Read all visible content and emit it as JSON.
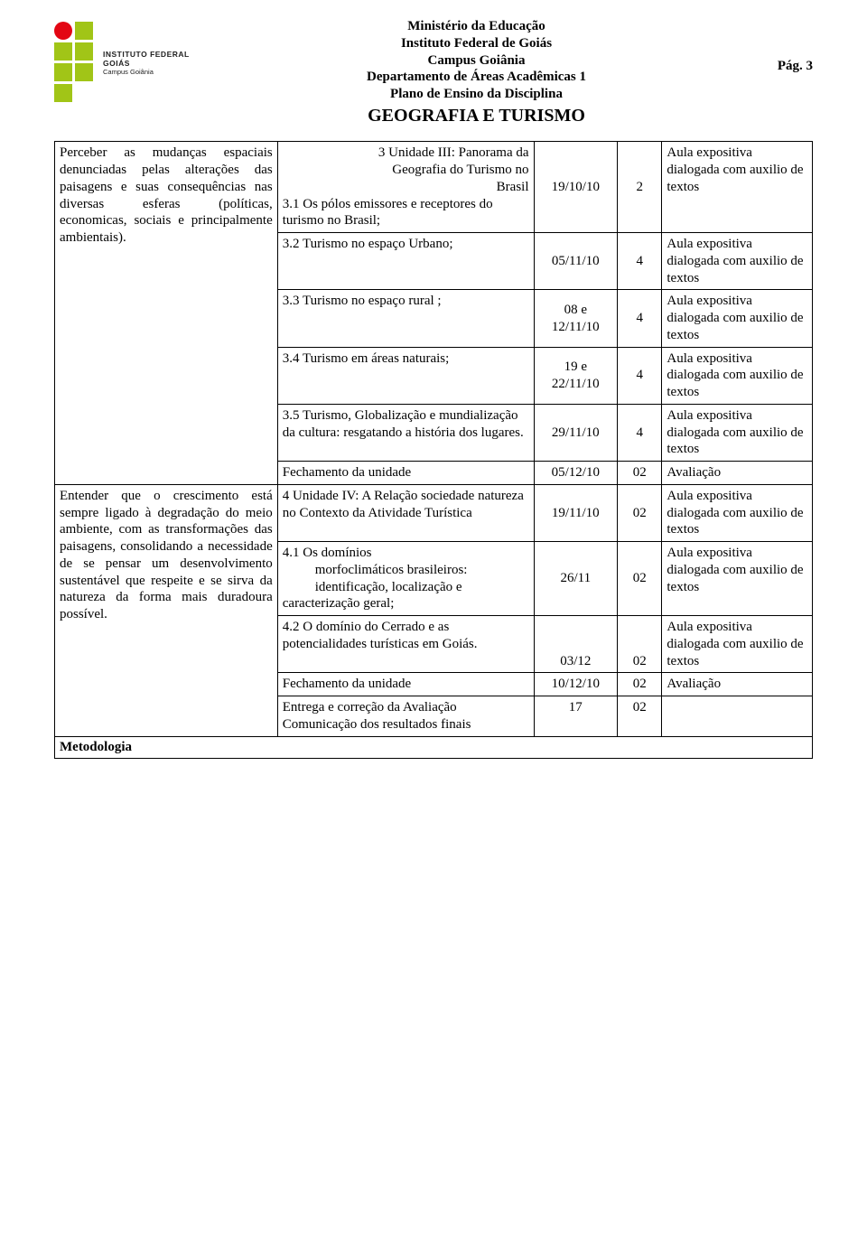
{
  "colors": {
    "red": "#e30613",
    "green": "#a1c517",
    "background": "#ffffff",
    "border": "#000000"
  },
  "header": {
    "line1": "Ministério da Educação",
    "line2": "Instituto Federal de Goiás",
    "line3": "Campus Goiânia",
    "line4": "Departamento de Áreas Acadêmicas 1",
    "line5": "Plano de Ensino da Disciplina",
    "course": "GEOGRAFIA E TURISMO",
    "page_label": "Pág. 3",
    "logo_line1": "INSTITUTO FEDERAL",
    "logo_line2": "GOIÁS",
    "logo_line3": "Campus Goiânia"
  },
  "section_footer": "Metodologia",
  "objectives": {
    "obj1": "Perceber as mudanças espaciais denunciadas pelas alterações das paisagens e suas consequências nas diversas esferas (políticas, economicas, sociais e principalmente ambientais).",
    "obj2": "Entender que o crescimento está sempre ligado à degradação do meio ambiente, com as transformações das paisagens, consolidando a necessidade de se  pensar um desenvolvimento sustentável que respeite e se sirva da natureza da forma mais duradoura possível."
  },
  "aula_text": "Aula expositiva dialogada com auxilio de textos",
  "avaliacao_text": "Avaliação",
  "rows": [
    {
      "content_pre": "3 Unidade III: Panorama  da Geografia do Turismo no Brasil",
      "content": "3.1 Os pólos emissores e receptores do turismo no Brasil;",
      "date": "19/10/10",
      "hours": "2",
      "method": "aula"
    },
    {
      "content": "3.2 Turismo no espaço Urbano;",
      "date": "05/11/10",
      "hours": "4",
      "method": "aula"
    },
    {
      "content": "3.3 Turismo no espaço rural ;",
      "date": "08 e 12/11/10",
      "hours": "4",
      "method": "aula"
    },
    {
      "content": "3.4 Turismo em áreas naturais;",
      "date": "19 e 22/11/10",
      "hours": "4",
      "method": "aula"
    },
    {
      "content": "3.5 Turismo, Globalização e mundialização da cultura: resgatando a história dos lugares.",
      "date": "29/11/10",
      "hours": "4",
      "method": "aula"
    },
    {
      "content": "Fechamento da unidade",
      "date": "05/12/10",
      "hours": "02",
      "method": "avaliacao"
    },
    {
      "content": "4 Unidade IV: A Relação sociedade natureza no Contexto da Atividade Turística",
      "date": "19/11/10",
      "hours": "02",
      "method": "aula"
    },
    {
      "content": "4.1 Os domínios",
      "content_sub": "morfoclimáticos brasileiros: identificação, localização e",
      "content_after": "caracterização geral;",
      "date": "26/11",
      "hours": "02",
      "method": "aula"
    },
    {
      "content": "4.2 O domínio do Cerrado e as potencialidades turísticas em Goiás.",
      "date": "03/12",
      "hours": "02",
      "method": "aula"
    },
    {
      "content": "Fechamento da unidade",
      "date": "10/12/10",
      "hours": "02",
      "method": "avaliacao"
    },
    {
      "content": "Entrega e correção da Avaliação Comunicação dos resultados finais",
      "date": "17",
      "hours": "02",
      "method": ""
    }
  ]
}
